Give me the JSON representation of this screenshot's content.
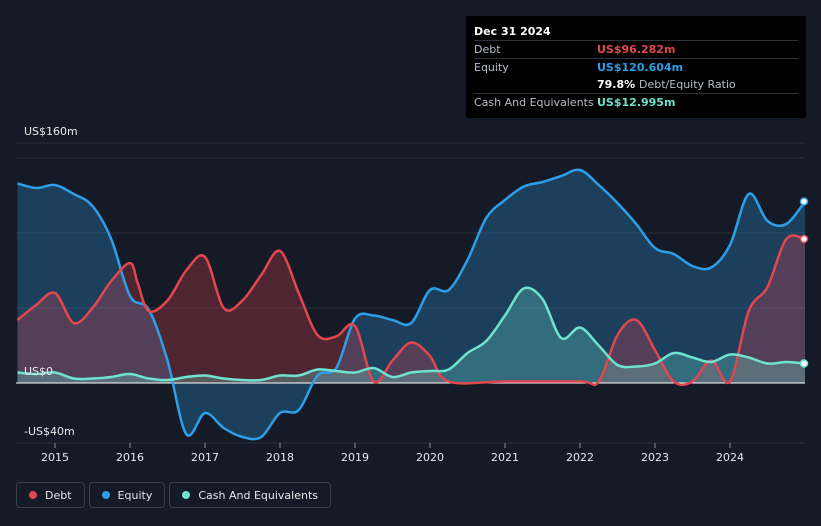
{
  "tooltip": {
    "date": "Dec 31 2024",
    "rows": [
      {
        "label": "Debt",
        "value": "US$96.282m",
        "color": "#e2464f"
      },
      {
        "label": "Equity",
        "value": "US$120.604m",
        "color": "#2f9ee8"
      },
      {
        "label": "",
        "value": "79.8%",
        "extra": "Debt/Equity Ratio",
        "color": "#ffffff"
      },
      {
        "label": "Cash And Equivalents",
        "value": "US$12.995m",
        "color": "#6fe3cf"
      }
    ]
  },
  "legend": [
    {
      "label": "Debt",
      "color": "#e2464f"
    },
    {
      "label": "Equity",
      "color": "#2f9ee8"
    },
    {
      "label": "Cash And Equivalents",
      "color": "#6fe3cf"
    }
  ],
  "chart_data": {
    "type": "area",
    "x_ticks": [
      "2015",
      "2016",
      "2017",
      "2018",
      "2019",
      "2020",
      "2021",
      "2022",
      "2023",
      "2024"
    ],
    "y_tick_labels": [
      {
        "value": 160,
        "label": "US$160m"
      },
      {
        "value": 0,
        "label": "US$0"
      },
      {
        "value": -40,
        "label": "-US$40m"
      }
    ],
    "xlim": [
      2014.48,
      2025.0
    ],
    "ylim": [
      -40,
      160
    ],
    "grid": true,
    "legend_position": "bottom-left",
    "series": [
      {
        "name": "Debt",
        "color": "#e2464f",
        "points": [
          [
            2014.5,
            42
          ],
          [
            2014.75,
            52
          ],
          [
            2015.0,
            60
          ],
          [
            2015.25,
            40
          ],
          [
            2015.5,
            50
          ],
          [
            2015.75,
            68
          ],
          [
            2016.0,
            80
          ],
          [
            2016.1,
            67
          ],
          [
            2016.25,
            48
          ],
          [
            2016.5,
            55
          ],
          [
            2016.75,
            75
          ],
          [
            2017.0,
            84
          ],
          [
            2017.25,
            50
          ],
          [
            2017.5,
            55
          ],
          [
            2017.75,
            72
          ],
          [
            2018.0,
            88
          ],
          [
            2018.25,
            60
          ],
          [
            2018.5,
            32
          ],
          [
            2018.75,
            31
          ],
          [
            2019.0,
            38
          ],
          [
            2019.25,
            1
          ],
          [
            2019.5,
            15
          ],
          [
            2019.75,
            27
          ],
          [
            2020.0,
            18
          ],
          [
            2020.25,
            1
          ],
          [
            2021.0,
            1
          ],
          [
            2022.0,
            1
          ],
          [
            2022.25,
            1
          ],
          [
            2022.5,
            32
          ],
          [
            2022.75,
            42
          ],
          [
            2023.0,
            22
          ],
          [
            2023.25,
            1
          ],
          [
            2023.5,
            1
          ],
          [
            2023.75,
            15
          ],
          [
            2024.0,
            1
          ],
          [
            2024.25,
            48
          ],
          [
            2024.5,
            64
          ],
          [
            2024.75,
            96
          ],
          [
            2025.0,
            96
          ]
        ]
      },
      {
        "name": "Equity",
        "color": "#2f9ee8",
        "points": [
          [
            2014.5,
            133
          ],
          [
            2014.75,
            130
          ],
          [
            2015.0,
            132
          ],
          [
            2015.25,
            126
          ],
          [
            2015.5,
            118
          ],
          [
            2015.75,
            96
          ],
          [
            2016.0,
            58
          ],
          [
            2016.25,
            49
          ],
          [
            2016.5,
            15
          ],
          [
            2016.75,
            -34
          ],
          [
            2017.0,
            -20
          ],
          [
            2017.25,
            -30
          ],
          [
            2017.5,
            -36
          ],
          [
            2017.75,
            -36
          ],
          [
            2018.0,
            -20
          ],
          [
            2018.25,
            -18
          ],
          [
            2018.5,
            5
          ],
          [
            2018.75,
            10
          ],
          [
            2019.0,
            43
          ],
          [
            2019.25,
            45
          ],
          [
            2019.5,
            42
          ],
          [
            2019.75,
            40
          ],
          [
            2020.0,
            62
          ],
          [
            2020.25,
            62
          ],
          [
            2020.5,
            82
          ],
          [
            2020.75,
            110
          ],
          [
            2021.0,
            122
          ],
          [
            2021.25,
            131
          ],
          [
            2021.5,
            134
          ],
          [
            2021.75,
            138
          ],
          [
            2022.0,
            142
          ],
          [
            2022.25,
            132
          ],
          [
            2022.5,
            120
          ],
          [
            2022.75,
            106
          ],
          [
            2023.0,
            90
          ],
          [
            2023.25,
            86
          ],
          [
            2023.5,
            78
          ],
          [
            2023.75,
            77
          ],
          [
            2024.0,
            92
          ],
          [
            2024.25,
            126
          ],
          [
            2024.5,
            108
          ],
          [
            2024.75,
            106
          ],
          [
            2025.0,
            121
          ]
        ]
      },
      {
        "name": "Cash And Equivalents",
        "color": "#6fe3cf",
        "points": [
          [
            2014.5,
            7
          ],
          [
            2014.75,
            6
          ],
          [
            2015.0,
            7
          ],
          [
            2015.25,
            3
          ],
          [
            2015.5,
            3
          ],
          [
            2015.75,
            4
          ],
          [
            2016.0,
            6
          ],
          [
            2016.25,
            3
          ],
          [
            2016.5,
            2
          ],
          [
            2016.75,
            4
          ],
          [
            2017.0,
            5
          ],
          [
            2017.25,
            3
          ],
          [
            2017.5,
            2
          ],
          [
            2017.75,
            2
          ],
          [
            2018.0,
            5
          ],
          [
            2018.25,
            5
          ],
          [
            2018.5,
            9
          ],
          [
            2018.75,
            8
          ],
          [
            2019.0,
            7
          ],
          [
            2019.25,
            10
          ],
          [
            2019.5,
            4
          ],
          [
            2019.75,
            7
          ],
          [
            2020.0,
            8
          ],
          [
            2020.25,
            9
          ],
          [
            2020.5,
            20
          ],
          [
            2020.75,
            28
          ],
          [
            2021.0,
            45
          ],
          [
            2021.25,
            63
          ],
          [
            2021.5,
            56
          ],
          [
            2021.75,
            30
          ],
          [
            2022.0,
            37
          ],
          [
            2022.25,
            25
          ],
          [
            2022.5,
            12
          ],
          [
            2022.75,
            11
          ],
          [
            2023.0,
            13
          ],
          [
            2023.25,
            20
          ],
          [
            2023.5,
            17
          ],
          [
            2023.75,
            14
          ],
          [
            2024.0,
            19
          ],
          [
            2024.25,
            17
          ],
          [
            2024.5,
            13
          ],
          [
            2024.75,
            14
          ],
          [
            2025.0,
            13
          ]
        ]
      }
    ]
  }
}
